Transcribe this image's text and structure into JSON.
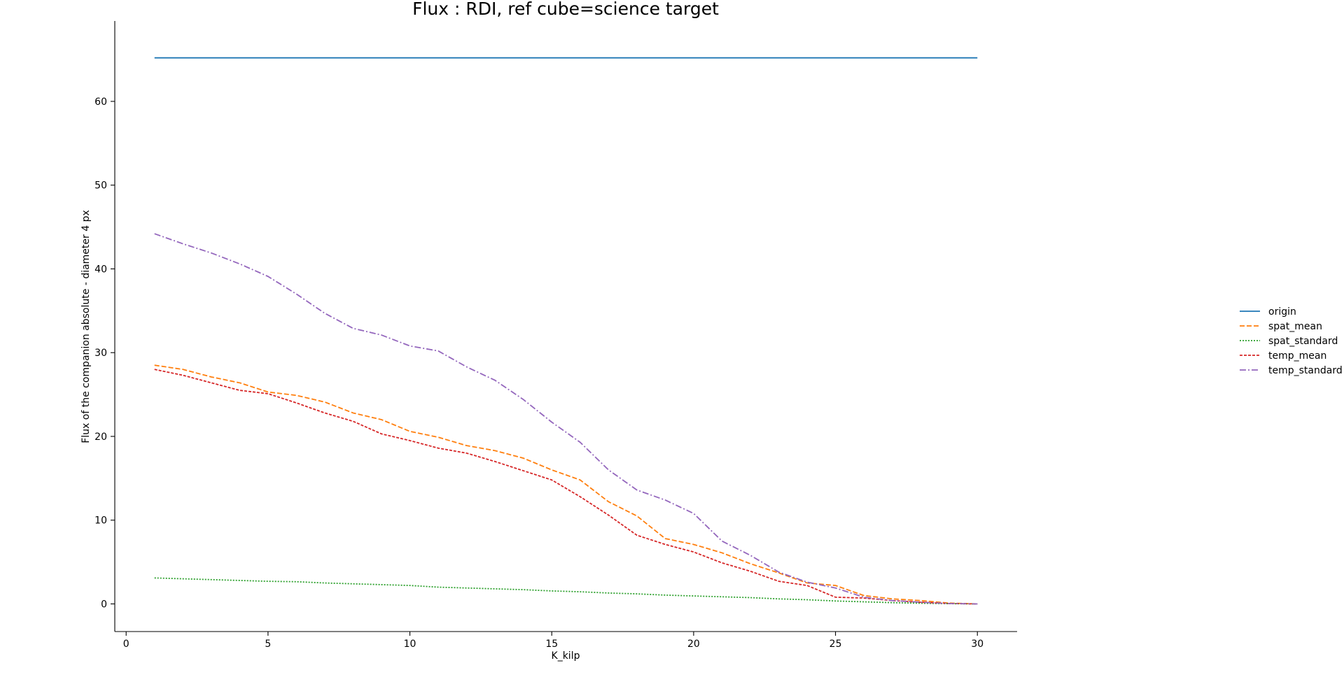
{
  "chart_data": {
    "type": "line",
    "title": "Flux : RDI, ref cube=science target",
    "xlabel": "K_kilp",
    "ylabel": "Flux of the companion absolute - diameter 4 px",
    "xlim": [
      -0.4,
      31.4
    ],
    "ylim": [
      -3.3,
      69.6
    ],
    "xticks": [
      0,
      5,
      10,
      15,
      20,
      25,
      30
    ],
    "yticks": [
      0,
      10,
      20,
      30,
      40,
      50,
      60
    ],
    "grid": false,
    "legend_position": "right",
    "x": [
      1,
      2,
      3,
      4,
      5,
      6,
      7,
      8,
      9,
      10,
      11,
      12,
      13,
      14,
      15,
      16,
      17,
      18,
      19,
      20,
      21,
      22,
      23,
      24,
      25,
      26,
      27,
      28,
      29,
      30
    ],
    "series": [
      {
        "name": "origin",
        "color": "#1f77b4",
        "dash": "solid",
        "values": [
          65.2,
          65.2,
          65.2,
          65.2,
          65.2,
          65.2,
          65.2,
          65.2,
          65.2,
          65.2,
          65.2,
          65.2,
          65.2,
          65.2,
          65.2,
          65.2,
          65.2,
          65.2,
          65.2,
          65.2,
          65.2,
          65.2,
          65.2,
          65.2,
          65.2,
          65.2,
          65.2,
          65.2,
          65.2,
          65.2
        ]
      },
      {
        "name": "spat_mean",
        "color": "#ff7f0e",
        "dash": "dashed",
        "values": [
          28.5,
          28.0,
          27.1,
          26.4,
          25.3,
          24.9,
          24.1,
          22.8,
          22.0,
          20.6,
          19.9,
          18.9,
          18.3,
          17.4,
          16.0,
          14.8,
          12.2,
          10.5,
          7.8,
          7.1,
          6.1,
          4.8,
          3.7,
          2.5,
          2.2,
          1.0,
          0.6,
          0.4,
          0.1,
          0.0
        ]
      },
      {
        "name": "spat_standard",
        "color": "#2ca02c",
        "dash": "dotted",
        "values": [
          3.1,
          3.0,
          2.9,
          2.8,
          2.7,
          2.65,
          2.5,
          2.4,
          2.3,
          2.2,
          2.0,
          1.9,
          1.8,
          1.7,
          1.55,
          1.45,
          1.3,
          1.2,
          1.05,
          0.95,
          0.85,
          0.75,
          0.6,
          0.5,
          0.35,
          0.25,
          0.15,
          0.08,
          0.03,
          0.0
        ]
      },
      {
        "name": "temp_mean",
        "color": "#d62728",
        "dash": "densedash",
        "values": [
          28.0,
          27.3,
          26.4,
          25.5,
          25.1,
          24.0,
          22.8,
          21.8,
          20.3,
          19.5,
          18.6,
          18.0,
          17.0,
          15.9,
          14.8,
          12.8,
          10.6,
          8.2,
          7.1,
          6.2,
          4.9,
          3.9,
          2.7,
          2.2,
          0.8,
          0.7,
          0.4,
          0.2,
          0.05,
          0.0
        ]
      },
      {
        "name": "temp_standard",
        "color": "#9467bd",
        "dash": "dashdot",
        "values": [
          44.2,
          43.0,
          41.9,
          40.6,
          39.1,
          37.0,
          34.7,
          32.9,
          32.1,
          30.8,
          30.2,
          28.3,
          26.7,
          24.4,
          21.7,
          19.3,
          16.0,
          13.6,
          12.4,
          10.8,
          7.5,
          5.8,
          3.8,
          2.6,
          1.9,
          0.8,
          0.4,
          0.2,
          0.05,
          0.0
        ]
      }
    ]
  }
}
